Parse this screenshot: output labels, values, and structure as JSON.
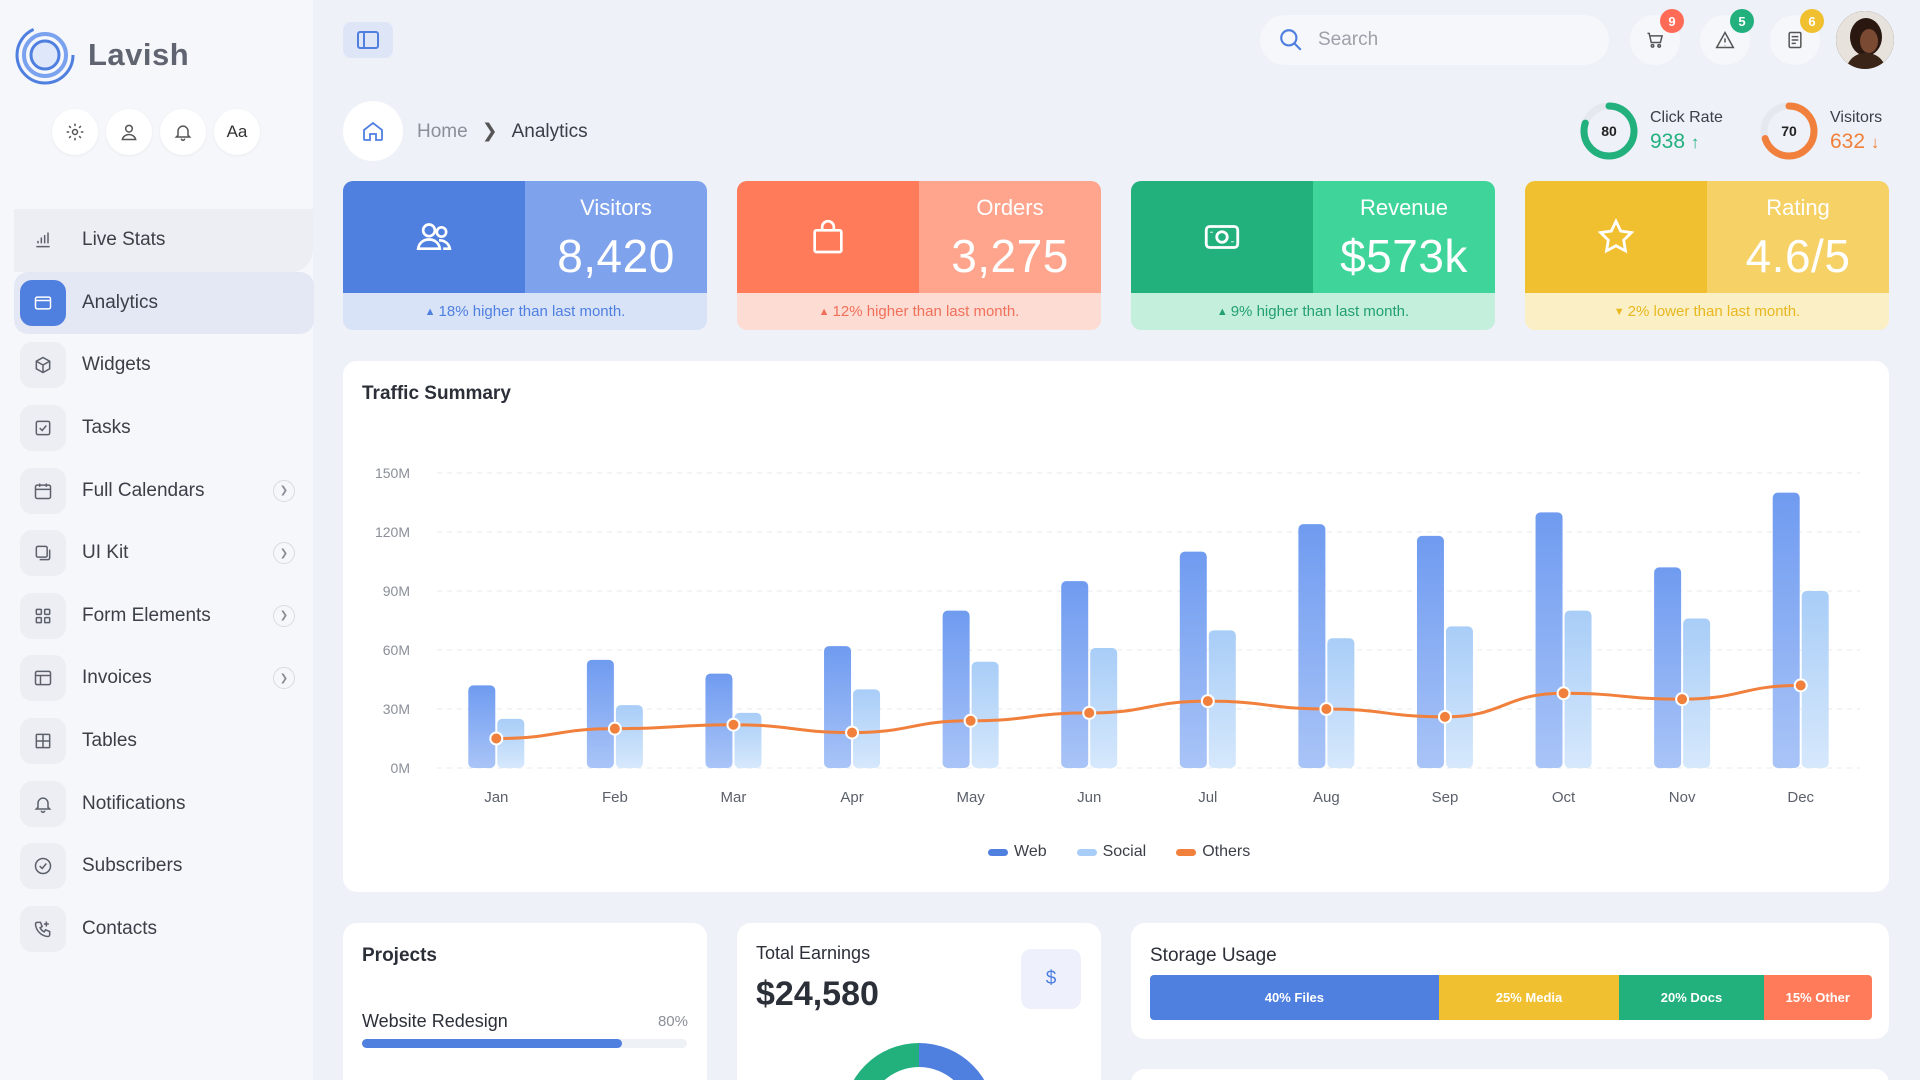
{
  "brand": {
    "name": "Lavish"
  },
  "quick": {
    "font_label": "Aa"
  },
  "sidebar": {
    "items": [
      {
        "label": "Live Stats",
        "icon": "bar-chart-icon"
      },
      {
        "label": "Analytics",
        "icon": "browser-window-icon"
      },
      {
        "label": "Widgets",
        "icon": "cube-icon"
      },
      {
        "label": "Tasks",
        "icon": "checkbox-icon"
      },
      {
        "label": "Full Calendars",
        "icon": "calendar-icon"
      },
      {
        "label": "UI Kit",
        "icon": "layers-icon"
      },
      {
        "label": "Form Elements",
        "icon": "grid-icon"
      },
      {
        "label": "Invoices",
        "icon": "invoice-icon"
      },
      {
        "label": "Tables",
        "icon": "table-icon"
      },
      {
        "label": "Notifications",
        "icon": "bell-icon"
      },
      {
        "label": "Subscribers",
        "icon": "check-circle-icon"
      },
      {
        "label": "Contacts",
        "icon": "phone-icon"
      }
    ]
  },
  "topbar": {
    "search_placeholder": "Search",
    "badges": {
      "cart": "9",
      "alerts": "5",
      "notes": "6"
    }
  },
  "breadcrumb": {
    "home": "Home",
    "current": "Analytics"
  },
  "kpis": [
    {
      "ring": "80",
      "label": "Click Rate",
      "value": "938",
      "arrow": "↑",
      "color": "#22b07d"
    },
    {
      "ring": "70",
      "label": "Visitors",
      "value": "632",
      "arrow": "↓",
      "color": "#f0803c"
    }
  ],
  "stats": [
    {
      "title": "Visitors",
      "value": "8,420",
      "note": "18% higher than last month.",
      "dir": "up"
    },
    {
      "title": "Orders",
      "value": "3,275",
      "note": "12% higher than last month.",
      "dir": "up"
    },
    {
      "title": "Revenue",
      "value": "$573k",
      "note": "9% higher than last month.",
      "dir": "up"
    },
    {
      "title": "Rating",
      "value": "4.6/5",
      "note": "2% lower than last month.",
      "dir": "down"
    }
  ],
  "colors": {
    "blue": "#4f7fdf",
    "orange": "#ff7b5a",
    "green": "#22b07d",
    "yellow": "#f0c030",
    "social": "#a8cdf7",
    "others": "#f0803c"
  },
  "traffic": {
    "title": "Traffic Summary"
  },
  "chart_data": {
    "type": "bar",
    "categories": [
      "Jan",
      "Feb",
      "Mar",
      "Apr",
      "May",
      "Jun",
      "Jul",
      "Aug",
      "Sep",
      "Oct",
      "Nov",
      "Dec"
    ],
    "series": [
      {
        "name": "Web",
        "type": "bar",
        "values": [
          42,
          55,
          48,
          62,
          80,
          95,
          110,
          124,
          118,
          130,
          102,
          140
        ]
      },
      {
        "name": "Social",
        "type": "bar",
        "values": [
          25,
          32,
          28,
          40,
          54,
          61,
          70,
          66,
          72,
          80,
          76,
          90
        ]
      },
      {
        "name": "Others",
        "type": "line",
        "values": [
          15,
          20,
          22,
          18,
          24,
          28,
          34,
          30,
          26,
          38,
          35,
          42
        ]
      }
    ],
    "yticks": [
      "0M",
      "30M",
      "60M",
      "90M",
      "120M",
      "150M"
    ],
    "ylim": [
      0,
      150
    ],
    "grid": true,
    "legend": "bottom-center"
  },
  "projects": {
    "title": "Projects",
    "item": "Website Redesign",
    "percent_label": "80%",
    "progress": 80
  },
  "earnings": {
    "title": "Total Earnings",
    "value": "$24,580",
    "icon_label": "$"
  },
  "storage": {
    "title": "Storage Usage",
    "segments": [
      {
        "label": "40% Files",
        "percent": 40,
        "color": "#4f7fdf"
      },
      {
        "label": "25% Media",
        "percent": 25,
        "color": "#f0c030"
      },
      {
        "label": "20% Docs",
        "percent": 20,
        "color": "#22b07d"
      },
      {
        "label": "15% Other",
        "percent": 15,
        "color": "#ff7b5a"
      }
    ]
  }
}
